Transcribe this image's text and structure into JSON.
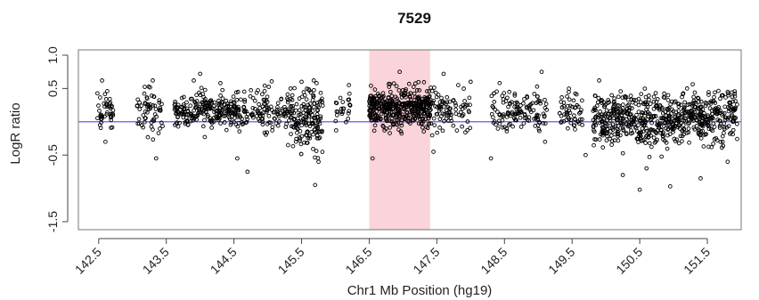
{
  "chart_data": {
    "type": "scatter",
    "title": "7529",
    "xlabel": "Chr1 Mb Position (hg19)",
    "ylabel": "LogR ratio",
    "xlim": [
      142.2,
      152.0
    ],
    "ylim": [
      -1.62,
      1.08
    ],
    "x_ticks": [
      "142.5",
      "143.5",
      "144.5",
      "145.5",
      "146.5",
      "147.5",
      "148.5",
      "149.5",
      "150.5",
      "151.5"
    ],
    "x_tick_values": [
      142.5,
      143.5,
      144.5,
      145.5,
      146.5,
      147.5,
      148.5,
      149.5,
      150.5,
      151.5
    ],
    "y_ticks": [
      "1.0",
      "0.5",
      "-0.5",
      "-1.5"
    ],
    "y_tick_values": [
      1.0,
      0.5,
      -0.5,
      -1.5
    ],
    "reference_line": {
      "y": 0.0,
      "color": "#4a4ae8"
    },
    "highlight_region": {
      "x_start": 146.5,
      "x_end": 147.4,
      "color": "#fbd3da"
    },
    "marker_color": "#000000",
    "grid": false,
    "series": [
      {
        "segments": [
          {
            "x_start": 142.48,
            "x_end": 142.72,
            "count": 45,
            "mean": 0.18,
            "sd": 0.15
          },
          {
            "x_start": 143.05,
            "x_end": 143.45,
            "count": 60,
            "mean": 0.17,
            "sd": 0.17
          },
          {
            "x_start": 143.62,
            "x_end": 144.55,
            "count": 230,
            "mean": 0.16,
            "sd": 0.14
          },
          {
            "x_start": 144.55,
            "x_end": 145.35,
            "count": 140,
            "mean": 0.16,
            "sd": 0.15
          },
          {
            "x_start": 145.35,
            "x_end": 145.82,
            "count": 160,
            "mean": 0.02,
            "sd": 0.24
          },
          {
            "x_start": 146.0,
            "x_end": 146.25,
            "count": 25,
            "mean": 0.16,
            "sd": 0.15
          },
          {
            "x_start": 146.5,
            "x_end": 147.4,
            "count": 420,
            "mean": 0.21,
            "sd": 0.14
          },
          {
            "x_start": 147.4,
            "x_end": 148.0,
            "count": 90,
            "mean": 0.18,
            "sd": 0.15
          },
          {
            "x_start": 148.3,
            "x_end": 149.15,
            "count": 130,
            "mean": 0.16,
            "sd": 0.15
          },
          {
            "x_start": 149.3,
            "x_end": 149.65,
            "count": 55,
            "mean": 0.14,
            "sd": 0.16
          },
          {
            "x_start": 149.8,
            "x_end": 150.9,
            "count": 360,
            "mean": 0.03,
            "sd": 0.19
          },
          {
            "x_start": 150.9,
            "x_end": 151.95,
            "count": 330,
            "mean": 0.06,
            "sd": 0.18
          }
        ],
        "outliers": [
          {
            "x": 142.55,
            "y": 0.62
          },
          {
            "x": 142.6,
            "y": -0.3
          },
          {
            "x": 143.3,
            "y": 0.62
          },
          {
            "x": 143.35,
            "y": -0.55
          },
          {
            "x": 144.0,
            "y": 0.72
          },
          {
            "x": 144.3,
            "y": 0.58
          },
          {
            "x": 144.7,
            "y": -0.75
          },
          {
            "x": 144.55,
            "y": -0.55
          },
          {
            "x": 145.7,
            "y": -0.95
          },
          {
            "x": 145.75,
            "y": -0.6
          },
          {
            "x": 145.5,
            "y": 0.6
          },
          {
            "x": 146.2,
            "y": 0.55
          },
          {
            "x": 146.55,
            "y": -0.55
          },
          {
            "x": 146.95,
            "y": 0.75
          },
          {
            "x": 147.45,
            "y": -0.45
          },
          {
            "x": 147.6,
            "y": 0.72
          },
          {
            "x": 148.0,
            "y": 0.6
          },
          {
            "x": 148.3,
            "y": -0.55
          },
          {
            "x": 149.05,
            "y": 0.75
          },
          {
            "x": 149.1,
            "y": -0.3
          },
          {
            "x": 149.9,
            "y": 0.62
          },
          {
            "x": 150.25,
            "y": -0.8
          },
          {
            "x": 150.5,
            "y": -1.02
          },
          {
            "x": 150.95,
            "y": -0.97
          },
          {
            "x": 151.4,
            "y": -0.85
          },
          {
            "x": 151.8,
            "y": -0.6
          },
          {
            "x": 151.2,
            "y": 0.5
          },
          {
            "x": 150.6,
            "y": -0.7
          },
          {
            "x": 149.7,
            "y": -0.5
          },
          {
            "x": 145.3,
            "y": -0.35
          }
        ]
      }
    ]
  }
}
